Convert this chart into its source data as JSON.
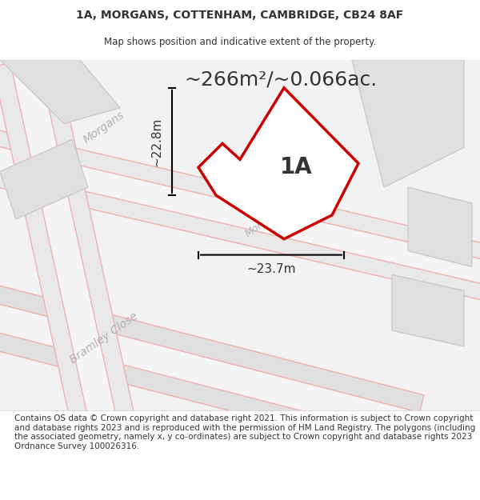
{
  "title": "1A, MORGANS, COTTENHAM, CAMBRIDGE, CB24 8AF",
  "subtitle": "Map shows position and indicative extent of the property.",
  "area_text": "~266m²/~0.066ac.",
  "label_1A": "1A",
  "dim_width": "~23.7m",
  "dim_height": "~22.8m",
  "footer": "Contains OS data © Crown copyright and database right 2021. This information is subject to Crown copyright and database rights 2023 and is reproduced with the permission of HM Land Registry. The polygons (including the associated geometry, namely x, y co-ordinates) are subject to Crown copyright and database rights 2023 Ordnance Survey 100026316.",
  "bg_color": "#f5f5f5",
  "map_bg": "#f0f0f0",
  "road_fill": "#e8e8e8",
  "road_outline": "#e8b8b8",
  "property_color": "#cc0000",
  "text_color": "#333333",
  "road_label_color": "#aaaaaa",
  "title_fontsize": 10,
  "subtitle_fontsize": 8.5,
  "area_fontsize": 18,
  "label_fontsize": 20,
  "dim_fontsize": 11,
  "footer_fontsize": 7.5
}
